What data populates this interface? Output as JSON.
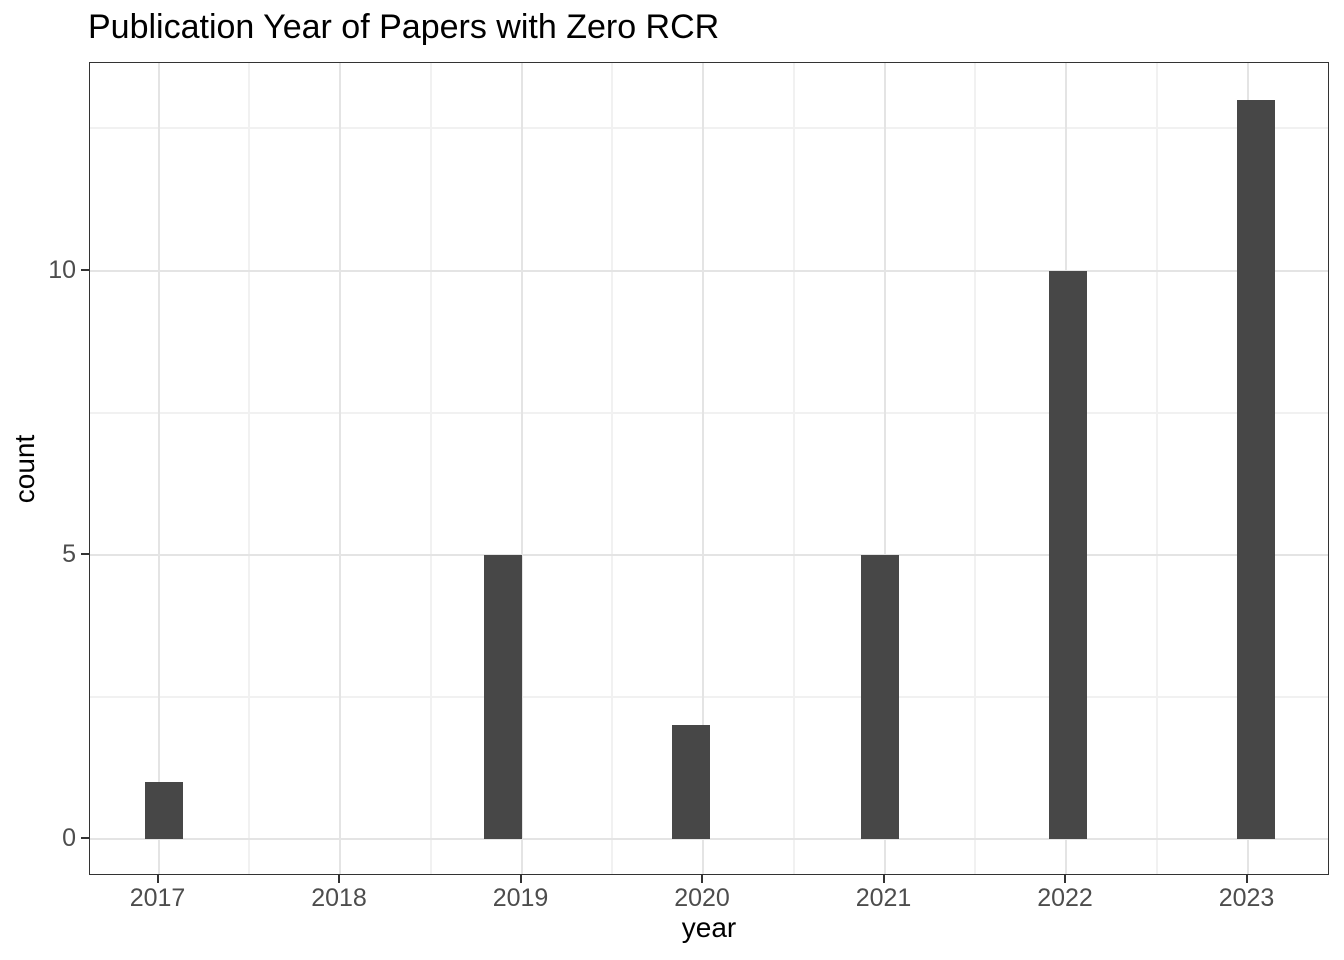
{
  "chart_data": {
    "type": "bar",
    "subtype": "histogram",
    "title": "Publication Year of Papers with Zero RCR",
    "xlabel": "year",
    "ylabel": "count",
    "categories": [
      2017,
      2018,
      2019,
      2020,
      2021,
      2022,
      2023
    ],
    "values": [
      1,
      0,
      5,
      2,
      5,
      10,
      13
    ],
    "xticks": [
      "2017",
      "2018",
      "2019",
      "2020",
      "2021",
      "2022",
      "2023"
    ],
    "yticks": [
      0,
      5,
      10
    ],
    "yticks_minor": [
      2.5,
      7.5,
      12.5
    ],
    "ylim": [
      -0.65,
      13.65
    ],
    "grid": true,
    "legend": false,
    "colors": {
      "bar_fill": "#474747",
      "grid_major": "#e4e4e4",
      "grid_minor": "#f1f1f1",
      "panel_border": "#333333",
      "tick_mark": "#333333",
      "axis_text": "#4d4d4d",
      "title_text": "#000000",
      "background": "#ffffff"
    }
  }
}
